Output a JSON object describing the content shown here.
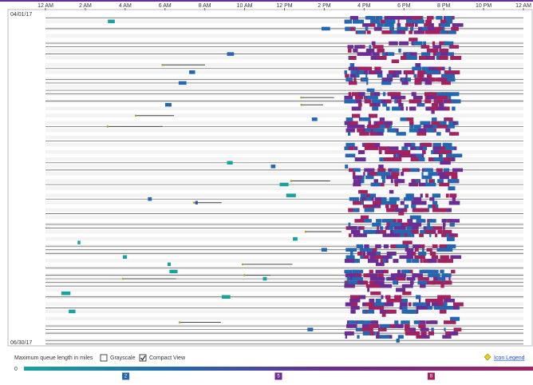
{
  "chart_data": {
    "type": "timeline",
    "xlim": [
      0,
      24
    ],
    "xticks": [
      {
        "value": 0,
        "label": "12 AM"
      },
      {
        "value": 2,
        "label": "2 AM"
      },
      {
        "value": 4,
        "label": "4 AM"
      },
      {
        "value": 6,
        "label": "6 AM"
      },
      {
        "value": 8,
        "label": "8 AM"
      },
      {
        "value": 10,
        "label": "10 AM"
      },
      {
        "value": 12,
        "label": "12 PM"
      },
      {
        "value": 14,
        "label": "2 PM"
      },
      {
        "value": 16,
        "label": "4 PM"
      },
      {
        "value": 18,
        "label": "6 PM"
      },
      {
        "value": 20,
        "label": "8 PM"
      },
      {
        "value": 22,
        "label": "10 PM"
      },
      {
        "value": 24,
        "label": "12 AM"
      }
    ],
    "start_date": "04/01/17",
    "end_date": "06/30/17",
    "colorbar": {
      "title": "Maximum queue length in miles",
      "lim": [
        0,
        10
      ],
      "ticks": [
        0,
        2,
        5,
        8
      ],
      "colors": [
        "#18a39f",
        "#2367b0",
        "#6b2d93",
        "#a2215e"
      ]
    },
    "controls": {
      "grayscale": {
        "label": "Grayscale",
        "checked": false
      },
      "compact_view": {
        "label": "Compact View",
        "checked": true
      },
      "icon_legend": "Icon Legend"
    }
  }
}
